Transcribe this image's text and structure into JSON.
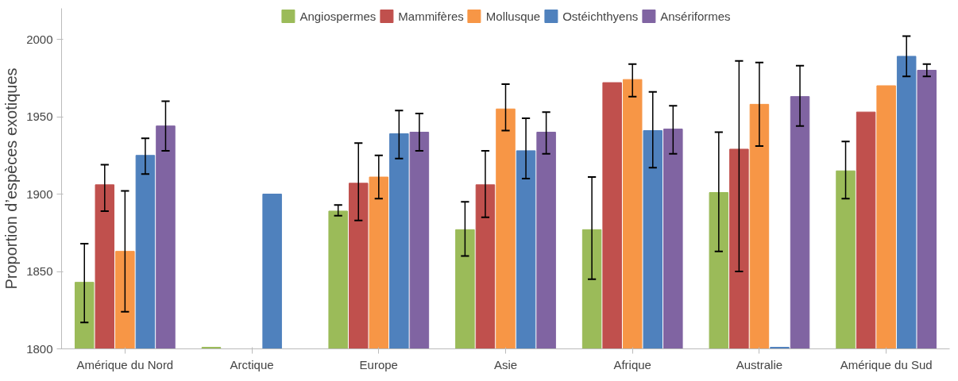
{
  "chart_data": {
    "type": "bar",
    "ylabel": "Proportion d’espèces exotiques",
    "categories": [
      "Amérique du Nord",
      "Arctique",
      "Europe",
      "Asie",
      "Afrique",
      "Australie",
      "Amérique du Sud"
    ],
    "ylim": [
      1800,
      2020
    ],
    "yticks": [
      1800,
      1850,
      1900,
      1950,
      2000
    ],
    "grid": false,
    "legend": "top",
    "series": [
      {
        "name": "Angiospermes",
        "color": "#9bbb59",
        "values": [
          1843,
          1801,
          1889,
          1877,
          1877,
          1901,
          1915
        ],
        "errors": [
          [
            1817,
            1868
          ],
          null,
          [
            1886,
            1893
          ],
          [
            1860,
            1895
          ],
          [
            1845,
            1911
          ],
          [
            1863,
            1940
          ],
          [
            1897,
            1934
          ]
        ]
      },
      {
        "name": "Mammifères",
        "color": "#c0504d",
        "values": [
          1906,
          null,
          1907,
          1906,
          1972,
          1929,
          1953
        ],
        "errors": [
          [
            1889,
            1919
          ],
          null,
          [
            1883,
            1933
          ],
          [
            1885,
            1928
          ],
          null,
          [
            1850,
            1986
          ],
          null
        ]
      },
      {
        "name": "Mollusque",
        "color": "#f79646",
        "values": [
          1863,
          null,
          1911,
          1955,
          1974,
          1958,
          1970
        ],
        "errors": [
          [
            1824,
            1902
          ],
          null,
          [
            1897,
            1925
          ],
          [
            1941,
            1971
          ],
          [
            1963,
            1984
          ],
          [
            1931,
            1985
          ],
          null
        ]
      },
      {
        "name": "Ostéichthyens",
        "color": "#4f81bd",
        "values": [
          1925,
          1900,
          1939,
          1928,
          1941,
          1801,
          1989
        ],
        "errors": [
          [
            1913,
            1936
          ],
          null,
          [
            1923,
            1954
          ],
          [
            1910,
            1949
          ],
          [
            1917,
            1966
          ],
          null,
          [
            1976,
            2002
          ]
        ]
      },
      {
        "name": "Ansériformes",
        "color": "#8064a2",
        "values": [
          1944,
          null,
          1940,
          1940,
          1942,
          1963,
          1980
        ],
        "errors": [
          [
            1928,
            1960
          ],
          null,
          [
            1928,
            1952
          ],
          [
            1926,
            1953
          ],
          [
            1926,
            1957
          ],
          [
            1944,
            1983
          ],
          [
            1976,
            1984
          ]
        ]
      }
    ]
  }
}
